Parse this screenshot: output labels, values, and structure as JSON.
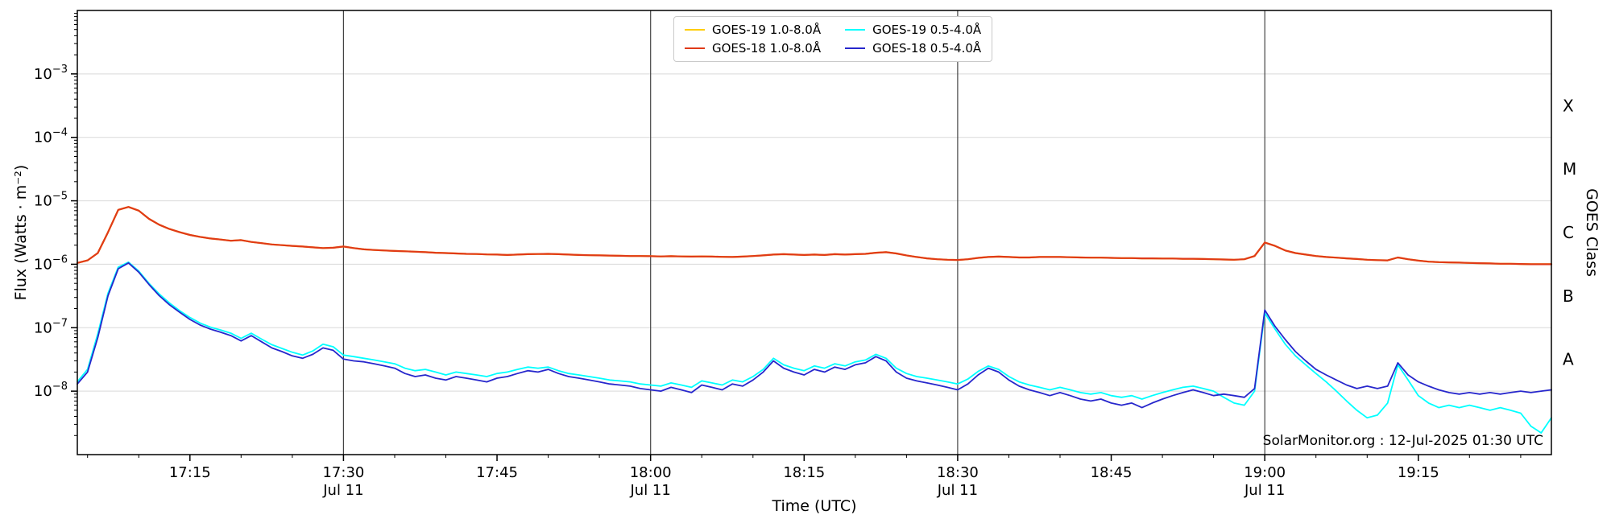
{
  "chart_data": {
    "type": "line",
    "title": "",
    "xlabel": "Time (UTC)",
    "ylabel": "Flux (Watts · m⁻²)",
    "ylabel_right": "GOES Class",
    "watermark": "SolarMonitor.org : 12-Jul-2025 01:30 UTC",
    "x_unit": "minutes after 17:00 UTC, 11-Jul-2025",
    "xlim_minutes": [
      4,
      148
    ],
    "ylim_log10": [
      -9,
      -2
    ],
    "x_start_minutes": 4,
    "x_step_minutes": 1,
    "grid": "horizontal decades on, vertical lines at half hours",
    "legend_position": "upper center",
    "legend_order": [
      0,
      2,
      1,
      3
    ],
    "colors": {
      "grid": "#d9d9d9",
      "vline": "#444444",
      "frame": "#000000",
      "background": "#ffffff"
    },
    "x_ticks": [
      {
        "t": 15,
        "label": "17:15",
        "sub": ""
      },
      {
        "t": 30,
        "label": "17:30",
        "sub": "Jul 11"
      },
      {
        "t": 45,
        "label": "17:45",
        "sub": ""
      },
      {
        "t": 60,
        "label": "18:00",
        "sub": "Jul 11"
      },
      {
        "t": 75,
        "label": "18:15",
        "sub": ""
      },
      {
        "t": 90,
        "label": "18:30",
        "sub": "Jul 11"
      },
      {
        "t": 105,
        "label": "18:45",
        "sub": ""
      },
      {
        "t": 120,
        "label": "19:00",
        "sub": "Jul 11"
      },
      {
        "t": 135,
        "label": "19:15",
        "sub": ""
      }
    ],
    "x_gridlines_minutes": [
      30,
      60,
      90,
      120
    ],
    "y_ticks": [
      {
        "exp": -3,
        "label": "10⁻³"
      },
      {
        "exp": -4,
        "label": "10⁻⁴"
      },
      {
        "exp": -5,
        "label": "10⁻⁵"
      },
      {
        "exp": -6,
        "label": "10⁻⁶"
      },
      {
        "exp": -7,
        "label": "10⁻⁷"
      },
      {
        "exp": -8,
        "label": "10⁻⁸"
      }
    ],
    "goes_classes": [
      {
        "label": "X",
        "center_exp": -3.5
      },
      {
        "label": "M",
        "center_exp": -4.5
      },
      {
        "label": "C",
        "center_exp": -5.5
      },
      {
        "label": "B",
        "center_exp": -6.5
      },
      {
        "label": "A",
        "center_exp": -7.5
      }
    ],
    "series": [
      {
        "name": "goes19-long",
        "label": "GOES-19 1.0-8.0Å",
        "color": "#ffcc00",
        "width": 2.2,
        "y": [
          1.05e-06,
          1.15e-06,
          1.5e-06,
          3.2e-06,
          7.2e-06,
          8e-06,
          7e-06,
          5.2e-06,
          4.2e-06,
          3.6e-06,
          3.2e-06,
          2.9e-06,
          2.7e-06,
          2.55e-06,
          2.45e-06,
          2.35e-06,
          2.4e-06,
          2.25e-06,
          2.15e-06,
          2.05e-06,
          2e-06,
          1.95e-06,
          1.9e-06,
          1.85e-06,
          1.8e-06,
          1.82e-06,
          1.9e-06,
          1.8e-06,
          1.72e-06,
          1.68e-06,
          1.65e-06,
          1.62e-06,
          1.6e-06,
          1.58e-06,
          1.55e-06,
          1.52e-06,
          1.5e-06,
          1.48e-06,
          1.46e-06,
          1.45e-06,
          1.43e-06,
          1.42e-06,
          1.4e-06,
          1.42e-06,
          1.44e-06,
          1.45e-06,
          1.46e-06,
          1.44e-06,
          1.42e-06,
          1.4e-06,
          1.39e-06,
          1.38e-06,
          1.37e-06,
          1.36e-06,
          1.35e-06,
          1.35e-06,
          1.34e-06,
          1.33e-06,
          1.34e-06,
          1.33e-06,
          1.32e-06,
          1.33e-06,
          1.32e-06,
          1.31e-06,
          1.3e-06,
          1.32e-06,
          1.35e-06,
          1.38e-06,
          1.42e-06,
          1.44e-06,
          1.42e-06,
          1.4e-06,
          1.42e-06,
          1.4e-06,
          1.44e-06,
          1.42e-06,
          1.44e-06,
          1.46e-06,
          1.52e-06,
          1.55e-06,
          1.48e-06,
          1.38e-06,
          1.3e-06,
          1.24e-06,
          1.2e-06,
          1.18e-06,
          1.17e-06,
          1.2e-06,
          1.26e-06,
          1.3e-06,
          1.32e-06,
          1.3e-06,
          1.28e-06,
          1.28e-06,
          1.3e-06,
          1.3e-06,
          1.3e-06,
          1.29e-06,
          1.28e-06,
          1.27e-06,
          1.27e-06,
          1.26e-06,
          1.25e-06,
          1.25e-06,
          1.24e-06,
          1.24e-06,
          1.23e-06,
          1.23e-06,
          1.22e-06,
          1.22e-06,
          1.21e-06,
          1.2e-06,
          1.19e-06,
          1.18e-06,
          1.2e-06,
          1.35e-06,
          2.2e-06,
          1.95e-06,
          1.65e-06,
          1.5e-06,
          1.42e-06,
          1.35e-06,
          1.3e-06,
          1.27e-06,
          1.24e-06,
          1.21e-06,
          1.18e-06,
          1.16e-06,
          1.15e-06,
          1.28e-06,
          1.2e-06,
          1.14e-06,
          1.1e-06,
          1.08e-06,
          1.07e-06,
          1.06e-06,
          1.05e-06,
          1.04e-06,
          1.03e-06,
          1.02e-06,
          1.02e-06,
          1.01e-06,
          1e-06,
          1e-06,
          1e-06
        ]
      },
      {
        "name": "goes18-long",
        "label": "GOES-18 1.0-8.0Å",
        "color": "#e03a18",
        "width": 2.2,
        "y": [
          1.05e-06,
          1.15e-06,
          1.5e-06,
          3.2e-06,
          7.2e-06,
          8e-06,
          7e-06,
          5.2e-06,
          4.2e-06,
          3.6e-06,
          3.2e-06,
          2.9e-06,
          2.7e-06,
          2.55e-06,
          2.45e-06,
          2.35e-06,
          2.4e-06,
          2.25e-06,
          2.15e-06,
          2.05e-06,
          2e-06,
          1.95e-06,
          1.9e-06,
          1.85e-06,
          1.8e-06,
          1.82e-06,
          1.9e-06,
          1.8e-06,
          1.72e-06,
          1.68e-06,
          1.65e-06,
          1.62e-06,
          1.6e-06,
          1.58e-06,
          1.55e-06,
          1.52e-06,
          1.5e-06,
          1.48e-06,
          1.46e-06,
          1.45e-06,
          1.43e-06,
          1.42e-06,
          1.4e-06,
          1.42e-06,
          1.44e-06,
          1.45e-06,
          1.46e-06,
          1.44e-06,
          1.42e-06,
          1.4e-06,
          1.39e-06,
          1.38e-06,
          1.37e-06,
          1.36e-06,
          1.35e-06,
          1.35e-06,
          1.34e-06,
          1.33e-06,
          1.34e-06,
          1.33e-06,
          1.32e-06,
          1.33e-06,
          1.32e-06,
          1.31e-06,
          1.3e-06,
          1.32e-06,
          1.35e-06,
          1.38e-06,
          1.42e-06,
          1.44e-06,
          1.42e-06,
          1.4e-06,
          1.42e-06,
          1.4e-06,
          1.44e-06,
          1.42e-06,
          1.44e-06,
          1.46e-06,
          1.52e-06,
          1.55e-06,
          1.48e-06,
          1.38e-06,
          1.3e-06,
          1.24e-06,
          1.2e-06,
          1.18e-06,
          1.17e-06,
          1.2e-06,
          1.26e-06,
          1.3e-06,
          1.32e-06,
          1.3e-06,
          1.28e-06,
          1.28e-06,
          1.3e-06,
          1.3e-06,
          1.3e-06,
          1.29e-06,
          1.28e-06,
          1.27e-06,
          1.27e-06,
          1.26e-06,
          1.25e-06,
          1.25e-06,
          1.24e-06,
          1.24e-06,
          1.23e-06,
          1.23e-06,
          1.22e-06,
          1.22e-06,
          1.21e-06,
          1.2e-06,
          1.19e-06,
          1.18e-06,
          1.2e-06,
          1.35e-06,
          2.2e-06,
          1.95e-06,
          1.65e-06,
          1.5e-06,
          1.42e-06,
          1.35e-06,
          1.3e-06,
          1.27e-06,
          1.24e-06,
          1.21e-06,
          1.18e-06,
          1.16e-06,
          1.15e-06,
          1.28e-06,
          1.2e-06,
          1.14e-06,
          1.1e-06,
          1.08e-06,
          1.07e-06,
          1.06e-06,
          1.05e-06,
          1.04e-06,
          1.03e-06,
          1.02e-06,
          1.02e-06,
          1.01e-06,
          1e-06,
          1e-06,
          1e-06
        ]
      },
      {
        "name": "goes19-short",
        "label": "GOES-19 0.5-4.0Å",
        "color": "#00ffff",
        "width": 1.8,
        "y": [
          1.4e-08,
          2.2e-08,
          8e-08,
          3.5e-07,
          9e-07,
          1.08e-06,
          7.8e-07,
          5e-07,
          3.4e-07,
          2.45e-07,
          1.85e-07,
          1.45e-07,
          1.18e-07,
          1.02e-07,
          9.2e-08,
          8.2e-08,
          6.8e-08,
          8.2e-08,
          6.6e-08,
          5.4e-08,
          4.7e-08,
          4.1e-08,
          3.7e-08,
          4.3e-08,
          5.5e-08,
          5e-08,
          3.7e-08,
          3.5e-08,
          3.3e-08,
          3.1e-08,
          2.9e-08,
          2.7e-08,
          2.3e-08,
          2.1e-08,
          2.2e-08,
          2e-08,
          1.8e-08,
          2e-08,
          1.9e-08,
          1.8e-08,
          1.7e-08,
          1.9e-08,
          2e-08,
          2.2e-08,
          2.4e-08,
          2.3e-08,
          2.4e-08,
          2.1e-08,
          1.9e-08,
          1.8e-08,
          1.7e-08,
          1.6e-08,
          1.5e-08,
          1.45e-08,
          1.4e-08,
          1.3e-08,
          1.25e-08,
          1.2e-08,
          1.35e-08,
          1.25e-08,
          1.15e-08,
          1.45e-08,
          1.35e-08,
          1.25e-08,
          1.5e-08,
          1.4e-08,
          1.7e-08,
          2.2e-08,
          3.3e-08,
          2.6e-08,
          2.3e-08,
          2.1e-08,
          2.5e-08,
          2.3e-08,
          2.7e-08,
          2.5e-08,
          2.9e-08,
          3.1e-08,
          3.8e-08,
          3.3e-08,
          2.3e-08,
          1.9e-08,
          1.7e-08,
          1.6e-08,
          1.5e-08,
          1.4e-08,
          1.3e-08,
          1.55e-08,
          2.05e-08,
          2.5e-08,
          2.2e-08,
          1.7e-08,
          1.4e-08,
          1.25e-08,
          1.15e-08,
          1.05e-08,
          1.15e-08,
          1.05e-08,
          9.5e-09,
          9e-09,
          9.5e-09,
          8.5e-09,
          8e-09,
          8.5e-09,
          7.5e-09,
          8.5e-09,
          9.5e-09,
          1.05e-08,
          1.15e-08,
          1.2e-08,
          1.1e-08,
          1e-08,
          8e-09,
          6.5e-09,
          6e-09,
          1e-08,
          1.7e-07,
          9.5e-08,
          5.5e-08,
          3.6e-08,
          2.6e-08,
          1.9e-08,
          1.4e-08,
          1e-08,
          7e-09,
          5e-09,
          3.8e-09,
          4.2e-09,
          6.5e-09,
          2.6e-08,
          1.5e-08,
          8.5e-09,
          6.5e-09,
          5.5e-09,
          6e-09,
          5.5e-09,
          6e-09,
          5.5e-09,
          5e-09,
          5.5e-09,
          5e-09,
          4.5e-09,
          2.8e-09,
          2.2e-09,
          3.8e-09
        ]
      },
      {
        "name": "goes18-short",
        "label": "GOES-18 0.5-4.0Å",
        "color": "#2727cc",
        "width": 1.8,
        "y": [
          1.3e-08,
          2e-08,
          7e-08,
          3.2e-07,
          8.5e-07,
          1.05e-06,
          7.5e-07,
          4.8e-07,
          3.2e-07,
          2.3e-07,
          1.75e-07,
          1.35e-07,
          1.1e-07,
          9.5e-08,
          8.5e-08,
          7.5e-08,
          6.2e-08,
          7.5e-08,
          6e-08,
          4.8e-08,
          4.2e-08,
          3.6e-08,
          3.3e-08,
          3.8e-08,
          4.8e-08,
          4.4e-08,
          3.2e-08,
          3e-08,
          2.9e-08,
          2.7e-08,
          2.5e-08,
          2.3e-08,
          1.9e-08,
          1.7e-08,
          1.8e-08,
          1.6e-08,
          1.5e-08,
          1.7e-08,
          1.6e-08,
          1.5e-08,
          1.4e-08,
          1.6e-08,
          1.7e-08,
          1.9e-08,
          2.1e-08,
          2e-08,
          2.2e-08,
          1.9e-08,
          1.7e-08,
          1.6e-08,
          1.5e-08,
          1.4e-08,
          1.3e-08,
          1.25e-08,
          1.2e-08,
          1.1e-08,
          1.05e-08,
          1e-08,
          1.15e-08,
          1.05e-08,
          9.5e-09,
          1.25e-08,
          1.15e-08,
          1.05e-08,
          1.3e-08,
          1.2e-08,
          1.5e-08,
          2e-08,
          3e-08,
          2.3e-08,
          2e-08,
          1.8e-08,
          2.2e-08,
          2e-08,
          2.4e-08,
          2.2e-08,
          2.6e-08,
          2.8e-08,
          3.5e-08,
          3e-08,
          2e-08,
          1.6e-08,
          1.45e-08,
          1.35e-08,
          1.25e-08,
          1.15e-08,
          1.05e-08,
          1.3e-08,
          1.8e-08,
          2.3e-08,
          2e-08,
          1.5e-08,
          1.2e-08,
          1.05e-08,
          9.5e-09,
          8.5e-09,
          9.5e-09,
          8.5e-09,
          7.5e-09,
          7e-09,
          7.5e-09,
          6.5e-09,
          6e-09,
          6.5e-09,
          5.5e-09,
          6.5e-09,
          7.5e-09,
          8.5e-09,
          9.5e-09,
          1.05e-08,
          9.5e-09,
          8.5e-09,
          9e-09,
          8.5e-09,
          8e-09,
          1.1e-08,
          1.9e-07,
          1.05e-07,
          6.5e-08,
          4.2e-08,
          3e-08,
          2.2e-08,
          1.8e-08,
          1.5e-08,
          1.25e-08,
          1.1e-08,
          1.2e-08,
          1.1e-08,
          1.2e-08,
          2.8e-08,
          1.8e-08,
          1.4e-08,
          1.2e-08,
          1.05e-08,
          9.5e-09,
          9e-09,
          9.5e-09,
          9e-09,
          9.5e-09,
          9e-09,
          9.5e-09,
          1e-08,
          9.5e-09,
          1e-08,
          1.05e-08
        ]
      }
    ]
  }
}
